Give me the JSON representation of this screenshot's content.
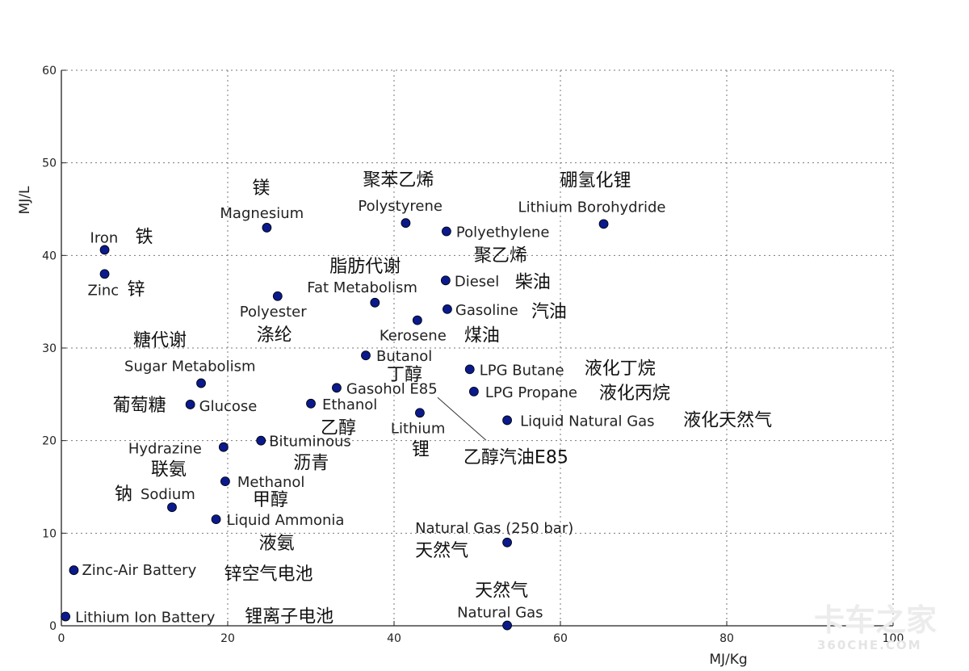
{
  "watermark": {
    "line1": "卡车之家",
    "line2": "360CHE.COM"
  },
  "chart_data": {
    "type": "scatter",
    "title": "",
    "xlabel": "MJ/Kg",
    "ylabel": "MJ/L",
    "xlim": [
      0,
      100
    ],
    "ylim": [
      0,
      60
    ],
    "xticks": [
      0,
      20,
      40,
      60,
      80,
      100
    ],
    "yticks": [
      0,
      10,
      20,
      30,
      40,
      50,
      60
    ],
    "grid": true,
    "marker_color": "#0a1a8c",
    "annotation": {
      "target": "Gasohol E85",
      "label": "乙醇汽油E85"
    },
    "points": [
      {
        "en": "Iron",
        "cn": "铁",
        "x": 5.2,
        "y": 40.6
      },
      {
        "en": "Zinc",
        "cn": "锌",
        "x": 5.2,
        "y": 38.0
      },
      {
        "en": "Magnesium",
        "cn": "镁",
        "x": 24.7,
        "y": 43.0
      },
      {
        "en": "Polystyrene",
        "cn": "聚苯乙烯",
        "x": 41.4,
        "y": 43.5
      },
      {
        "en": "Polyethylene",
        "cn": "聚乙烯",
        "x": 46.3,
        "y": 42.6
      },
      {
        "en": "Lithium Borohydride",
        "cn": "硼氢化锂",
        "x": 65.2,
        "y": 43.4
      },
      {
        "en": "Fat Metabolism",
        "cn": "脂肪代谢",
        "x": 37.7,
        "y": 34.9
      },
      {
        "en": "Diesel",
        "cn": "柴油",
        "x": 46.2,
        "y": 37.3
      },
      {
        "en": "Gasoline",
        "cn": "汽油",
        "x": 46.4,
        "y": 34.2
      },
      {
        "en": "Kerosene",
        "cn": "煤油",
        "x": 42.8,
        "y": 33.0
      },
      {
        "en": "Polyester",
        "cn": "涤纶",
        "x": 26.0,
        "y": 35.6
      },
      {
        "en": "Sugar Metabolism",
        "cn": "糖代谢",
        "x": 16.8,
        "y": 26.2
      },
      {
        "en": "Glucose",
        "cn": "葡萄糖",
        "x": 15.5,
        "y": 23.9
      },
      {
        "en": "Butanol",
        "cn": "丁醇",
        "x": 36.6,
        "y": 29.2
      },
      {
        "en": "Gasohol E85",
        "cn": "",
        "x": 33.1,
        "y": 25.7
      },
      {
        "en": "Ethanol",
        "cn": "乙醇",
        "x": 30.0,
        "y": 24.0
      },
      {
        "en": "Lithium",
        "cn": "锂",
        "x": 43.1,
        "y": 23.0
      },
      {
        "en": "LPG Butane",
        "cn": "液化丁烷",
        "x": 49.1,
        "y": 27.7
      },
      {
        "en": "LPG Propane",
        "cn": "液化丙烷",
        "x": 49.6,
        "y": 25.3
      },
      {
        "en": "Liquid Natural Gas",
        "cn": "液化天然气",
        "x": 53.6,
        "y": 22.2
      },
      {
        "en": "Hydrazine",
        "cn": "联氨",
        "x": 19.5,
        "y": 19.3
      },
      {
        "en": "Bituminous",
        "cn": "沥青",
        "x": 24.0,
        "y": 20.0
      },
      {
        "en": "Methanol",
        "cn": "甲醇",
        "x": 19.7,
        "y": 15.6
      },
      {
        "en": "Sodium",
        "cn": "钠",
        "x": 13.3,
        "y": 12.8
      },
      {
        "en": "Liquid Ammonia",
        "cn": "液氨",
        "x": 18.6,
        "y": 11.5
      },
      {
        "en": "Natural Gas (250 bar)",
        "cn": "天然气",
        "x": 53.6,
        "y": 9.0
      },
      {
        "en": "Zinc-Air Battery",
        "cn": "锌空气电池",
        "x": 1.5,
        "y": 6.0
      },
      {
        "en": "Lithium Ion Battery",
        "cn": "锂离子电池",
        "x": 0.5,
        "y": 1.0
      },
      {
        "en": "Natural Gas",
        "cn": "天然气",
        "x": 53.6,
        "y": 0.04
      }
    ]
  }
}
